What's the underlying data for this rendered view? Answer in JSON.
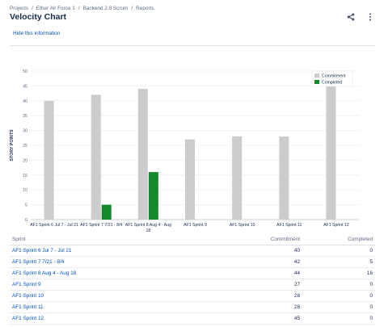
{
  "breadcrumb": [
    {
      "label": "Projects"
    },
    {
      "label": "Ether Air Force 1"
    },
    {
      "label": "Backend 2.0 Scrum"
    },
    {
      "label": "Reports"
    }
  ],
  "breadcrumb_separator": "/",
  "page": {
    "title": "Velocity Chart",
    "hide_info_label": "Hide this information"
  },
  "icons": {
    "share": "share-icon",
    "more": "more-icon"
  },
  "colors": {
    "commitment": "#cccccc",
    "completed": "#14892c",
    "link": "#0052cc"
  },
  "chart_data": {
    "type": "bar",
    "ylabel": "STORY POINTS",
    "xlabel": "",
    "ylim": [
      0,
      50
    ],
    "yticks": [
      0,
      5,
      10,
      15,
      20,
      25,
      30,
      35,
      40,
      45,
      50
    ],
    "grid": true,
    "legend": "top-right",
    "categories": [
      "AF1 Sprint 6 Jul 7 - Jul 21",
      "AF1 Sprint 7 7/21 - 8/4",
      "AF1 Sprint 8 Aug 4 - Aug 18",
      "AF1 Sprint 9",
      "AF1 Sprint 10",
      "AF1 Sprint 11",
      "AF1 Sprint 12"
    ],
    "category_lines": [
      [
        "AF1 Sprint 6 Jul 7 - Jul 21"
      ],
      [
        "AF1 Sprint 7 7/21 - 8/4"
      ],
      [
        "AF1 Sprint 8 Aug 4 - Aug",
        "18"
      ],
      [
        "AF1 Sprint 9"
      ],
      [
        "AF1 Sprint 10"
      ],
      [
        "AF1 Sprint 11"
      ],
      [
        "AF1 Sprint 12"
      ]
    ],
    "series": [
      {
        "name": "Commitment",
        "values": [
          40,
          42,
          44,
          27,
          28,
          28,
          45
        ]
      },
      {
        "name": "Completed",
        "values": [
          0,
          5,
          16,
          0,
          0,
          0,
          0
        ]
      }
    ]
  },
  "table": {
    "headers": {
      "sprint": "Sprint",
      "commitment": "Commitment",
      "completed": "Completed"
    },
    "rows": [
      {
        "sprint": "AF1 Sprint 6 Jul 7 - Jul 21",
        "commitment": "40",
        "completed": "0"
      },
      {
        "sprint": "AF1 Sprint 7 7/21 - 8/4",
        "commitment": "42",
        "completed": "5"
      },
      {
        "sprint": "AF1 Sprint 8 Aug 4 - Aug 18",
        "commitment": "44",
        "completed": "16"
      },
      {
        "sprint": "AF1 Sprint 9",
        "commitment": "27",
        "completed": "0"
      },
      {
        "sprint": "AF1 Sprint 10",
        "commitment": "28",
        "completed": "0"
      },
      {
        "sprint": "AF1 Sprint 11",
        "commitment": "28",
        "completed": "0"
      },
      {
        "sprint": "AF1 Sprint 12",
        "commitment": "45",
        "completed": "0"
      }
    ]
  }
}
